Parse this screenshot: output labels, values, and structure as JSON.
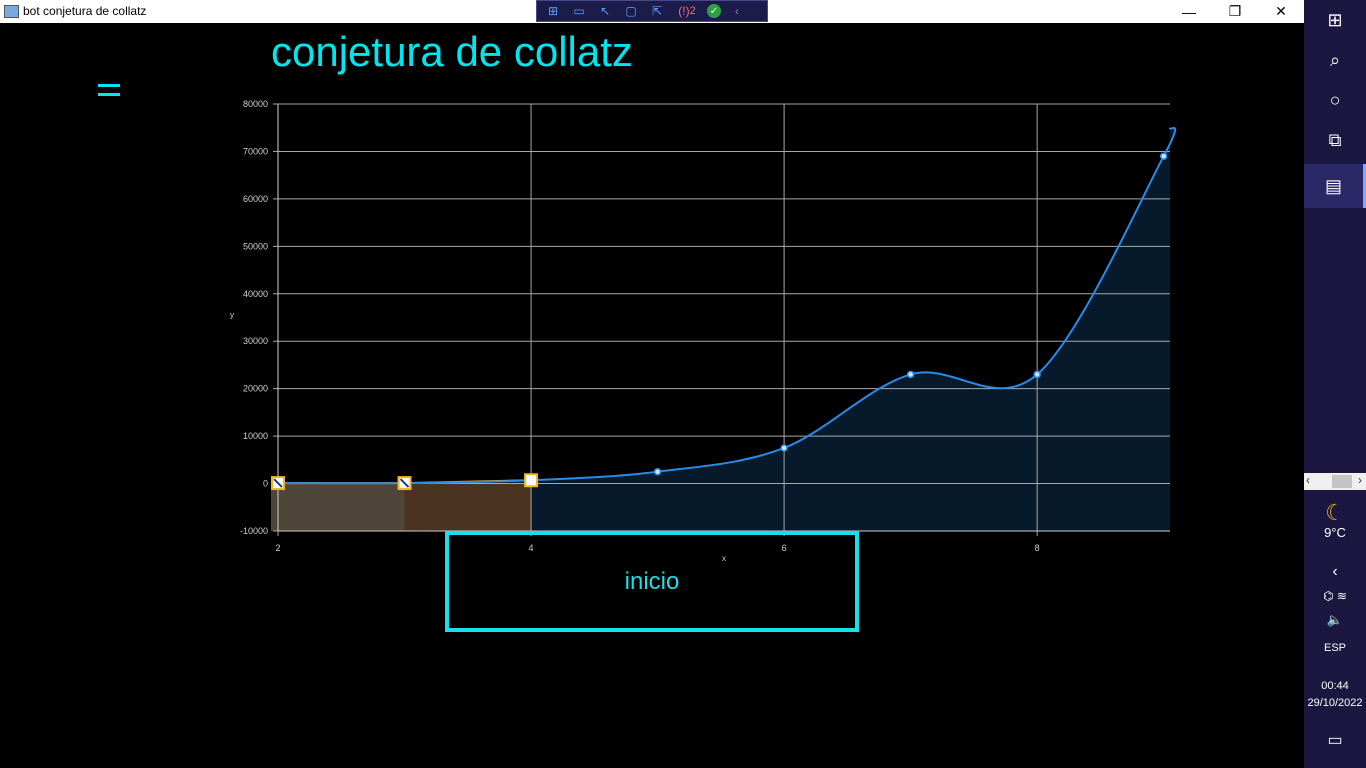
{
  "window": {
    "title": "bot conjetura de  collatz",
    "debug_error_count": "2",
    "controls": {
      "minimize": "—",
      "maximize": "❐",
      "close": "✕"
    }
  },
  "app": {
    "title": "conjetura de collatz",
    "start_button": "inicio"
  },
  "chart_data": {
    "type": "line",
    "xlabel": "x",
    "ylabel": "y",
    "xlim": [
      2,
      9.05
    ],
    "ylim": [
      -10000,
      80000
    ],
    "x_ticks": [
      "2",
      "4",
      "6",
      "8"
    ],
    "y_ticks": [
      "-10000",
      "0",
      "10000",
      "20000",
      "30000",
      "40000",
      "50000",
      "60000",
      "70000",
      "80000"
    ],
    "grid": true,
    "series": [
      {
        "x": [
          2,
          3,
          4,
          5,
          6,
          7,
          8,
          9
        ],
        "y": [
          100,
          100,
          700,
          2500,
          7500,
          23000,
          23000,
          69000
        ]
      }
    ],
    "highlighted_points": [
      {
        "x": 2,
        "y": 100
      },
      {
        "x": 3,
        "y": 100
      },
      {
        "x": 4,
        "y": 700
      }
    ],
    "colors": {
      "line": "#2a8ae8",
      "fill": "#071a2c",
      "highlight": "#f2b418",
      "grid": "#a8a8a8"
    }
  },
  "taskbar": {
    "weather_temp": "9°C",
    "language": "ESP",
    "time": "00:44",
    "date": "29/10/2022",
    "icons": [
      "windows-icon",
      "search-icon",
      "cortana-icon",
      "task-view-icon",
      "app-window-icon"
    ]
  }
}
